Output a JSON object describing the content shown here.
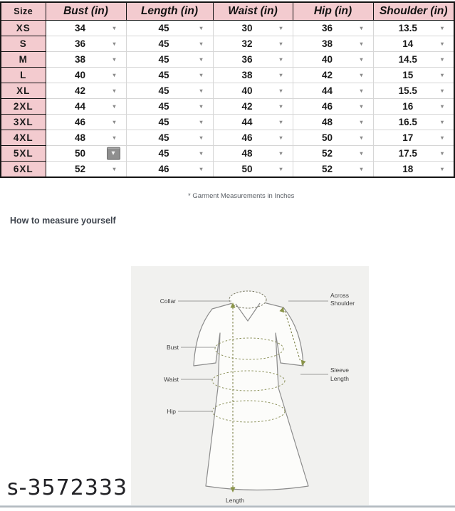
{
  "table": {
    "columns": [
      "Size",
      "Bust (in)",
      "Length (in)",
      "Waist (in)",
      "Hip (in)",
      "Shoulder (in)"
    ],
    "rows": [
      {
        "size": "XS",
        "values": [
          "34",
          "45",
          "30",
          "36",
          "13.5"
        ]
      },
      {
        "size": "S",
        "values": [
          "36",
          "45",
          "32",
          "38",
          "14"
        ]
      },
      {
        "size": "M",
        "values": [
          "38",
          "45",
          "36",
          "40",
          "14.5"
        ]
      },
      {
        "size": "L",
        "values": [
          "40",
          "45",
          "38",
          "42",
          "15"
        ]
      },
      {
        "size": "XL",
        "values": [
          "42",
          "45",
          "40",
          "44",
          "15.5"
        ]
      },
      {
        "size": "2XL",
        "values": [
          "44",
          "45",
          "42",
          "46",
          "16"
        ]
      },
      {
        "size": "3XL",
        "values": [
          "46",
          "45",
          "44",
          "48",
          "16.5"
        ]
      },
      {
        "size": "4XL",
        "values": [
          "48",
          "45",
          "46",
          "50",
          "17"
        ]
      },
      {
        "size": "5XL",
        "values": [
          "50",
          "45",
          "48",
          "52",
          "17.5"
        ]
      },
      {
        "size": "6XL",
        "values": [
          "52",
          "46",
          "50",
          "52",
          "18"
        ]
      }
    ],
    "dropdown_arrow_glyph": "▾",
    "highlighted_cell": {
      "row_index": 8,
      "col_index": 0
    }
  },
  "note": "* Garment Measurements in Inches",
  "heading": "How to measure yourself",
  "diagram": {
    "labels": {
      "collar": "Collar",
      "bust": "Bust",
      "waist": "Waist",
      "hip": "Hip",
      "across_shoulder": [
        "Across",
        "Shoulder"
      ],
      "sleeve_length": [
        "Sleeve",
        "Length"
      ],
      "length": "Length"
    }
  },
  "watermark": "s-3572333",
  "colors": {
    "header_pink": "#f3cbcf",
    "table_border": "#141414",
    "grid_gray": "#d6d6d6",
    "diagram_bg": "#f1f1ef",
    "measure_olive": "#8f945f",
    "outline_gray": "#8c8c8c"
  }
}
